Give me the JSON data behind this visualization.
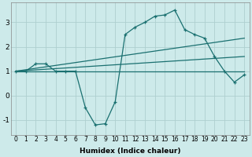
{
  "xlabel": "Humidex (Indice chaleur)",
  "bg_color": "#cdeaea",
  "grid_color": "#aecfcf",
  "line_color": "#1a7070",
  "xlim": [
    -0.5,
    23.5
  ],
  "ylim": [
    -1.6,
    3.8
  ],
  "xticks": [
    0,
    1,
    2,
    3,
    4,
    5,
    6,
    7,
    8,
    9,
    10,
    11,
    12,
    13,
    14,
    15,
    16,
    17,
    18,
    19,
    20,
    21,
    22,
    23
  ],
  "yticks": [
    -1,
    0,
    1,
    2,
    3
  ],
  "line1_x": [
    0,
    1,
    2,
    3,
    4,
    5,
    6,
    7,
    8,
    9,
    10,
    11,
    12,
    13,
    14,
    15,
    16,
    17,
    18,
    19,
    20,
    21,
    22,
    23
  ],
  "line1_y": [
    1.0,
    1.0,
    1.3,
    1.3,
    1.0,
    1.0,
    1.0,
    -0.5,
    -1.2,
    -1.15,
    -0.25,
    2.5,
    2.8,
    3.0,
    3.25,
    3.3,
    3.5,
    2.7,
    2.5,
    2.35,
    1.6,
    1.0,
    0.55,
    0.85
  ],
  "line2_x": [
    0,
    23
  ],
  "line2_y": [
    1.0,
    2.35
  ],
  "line3_x": [
    0,
    23
  ],
  "line3_y": [
    1.0,
    1.0
  ],
  "line4_x": [
    0,
    23
  ],
  "line4_y": [
    1.0,
    1.6
  ],
  "xlabel_fontsize": 6.5,
  "tick_fontsize": 5.5,
  "ytick_fontsize": 6.5,
  "lw": 0.9
}
